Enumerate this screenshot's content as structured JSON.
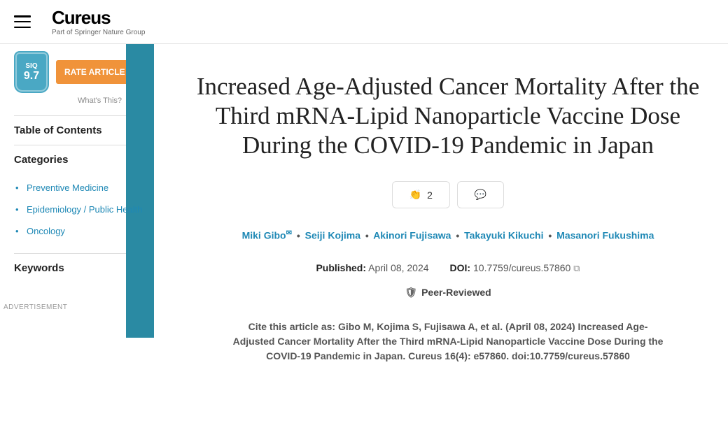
{
  "header": {
    "logo": "Cureus",
    "logo_sub": "Part of Springer Nature Group"
  },
  "sidebar": {
    "siq": {
      "label": "SIQ",
      "score": "9.7"
    },
    "rate_label": "RATE ARTICLE",
    "whats_this": "What's This?",
    "toc_label": "Table of Contents",
    "categories_label": "Categories",
    "categories": [
      "Preventive Medicine",
      "Epidemiology / Public Health",
      "Oncology"
    ],
    "keywords_label": "Keywords",
    "ad_label": "ADVERTISEMENT"
  },
  "article": {
    "title": "Increased Age-Adjusted Cancer Mortality After the Third mRNA-Lipid Nanoparticle Vaccine Dose During the COVID-19 Pandemic in Japan",
    "clap_count": "2",
    "authors": [
      "Miki Gibo",
      "Seiji Kojima",
      "Akinori Fujisawa",
      "Takayuki Kikuchi",
      "Masanori Fukushima"
    ],
    "published_label": "Published:",
    "published_date": "April 08, 2024",
    "doi_label": "DOI:",
    "doi": "10.7759/cureus.57860",
    "peer_reviewed": "Peer-Reviewed",
    "citation_prefix": "Cite this article as:",
    "citation": "Gibo M, Kojima S, Fujisawa A, et al. (April 08, 2024) Increased Age-Adjusted Cancer Mortality After the Third mRNA-Lipid Nanoparticle Vaccine Dose During the COVID-19 Pandemic in Japan. Cureus 16(4): e57860. doi:10.7759/cureus.57860"
  },
  "colors": {
    "accent_teal": "#2a8aa3",
    "badge_blue": "#4aa8c4",
    "rate_orange": "#f0933a",
    "link_blue": "#1e88b5"
  }
}
